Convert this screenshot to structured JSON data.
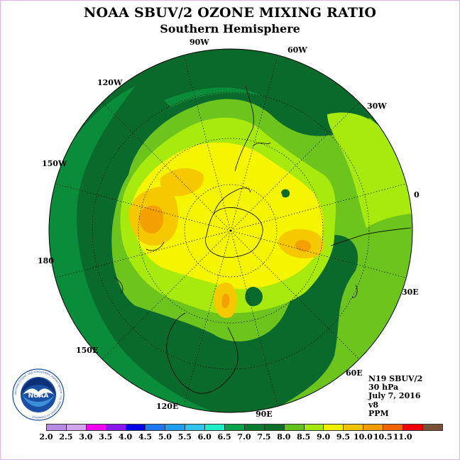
{
  "header": {
    "title": "NOAA SBUV/2 OZONE MIXING RATIO",
    "subtitle": "Southern Hemisphere"
  },
  "longitude_labels": [
    {
      "key": "90w",
      "text": "90W"
    },
    {
      "key": "60w",
      "text": "60W"
    },
    {
      "key": "30w",
      "text": "30W"
    },
    {
      "key": "0",
      "text": "0"
    },
    {
      "key": "30e",
      "text": "30E"
    },
    {
      "key": "60e",
      "text": "60E"
    },
    {
      "key": "90e",
      "text": "90E"
    },
    {
      "key": "120e",
      "text": "120E"
    },
    {
      "key": "150e",
      "text": "150E"
    },
    {
      "key": "180",
      "text": "180"
    },
    {
      "key": "150w",
      "text": "150W"
    },
    {
      "key": "120w",
      "text": "120W"
    }
  ],
  "info": {
    "satellite": "N19 SBUV/2",
    "level": "30 hPa",
    "date": "July 7, 2016",
    "version": "v8",
    "units": "PPM"
  },
  "logo": {
    "text": "NOAA",
    "ring_text": "NATIONAL OCEANIC AND ATMOSPHERIC ADMINISTRATION · U.S. DEPARTMENT OF COMMERCE"
  },
  "colorbar": {
    "ticks": [
      "2.0",
      "2.5",
      "3.0",
      "3.5",
      "4.0",
      "4.5",
      "5.0",
      "5.5",
      "6.0",
      "6.5",
      "7.0",
      "7.5",
      "8.0",
      "8.5",
      "9.0",
      "9.5",
      "10.0",
      "10.5",
      "11.0"
    ],
    "colors": [
      "#b58ee3",
      "#d2a6ef",
      "#ef08ef",
      "#8a17ef",
      "#0000e6",
      "#1e78ef",
      "#1ea0ef",
      "#31c4ef",
      "#20efc8",
      "#0aa34a",
      "#087a32",
      "#0a6e28",
      "#62c21a",
      "#a5e810",
      "#f0f000",
      "#f0c400",
      "#f09c00",
      "#f06400",
      "#ef0000",
      "#7a5036"
    ],
    "level_colors": {
      "6.5": "#0a8d3a",
      "7.0": "#0a6a2c",
      "7.5": "#6cc41c",
      "8.0": "#a8ea0e",
      "8.5": "#f5f500",
      "9.0": "#f5c800",
      "9.5": "#f3a000"
    }
  }
}
